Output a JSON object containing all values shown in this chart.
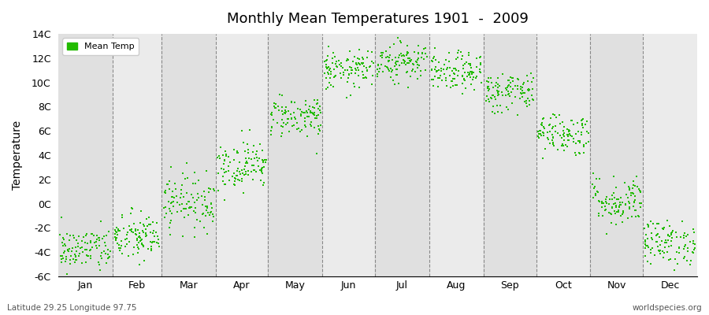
{
  "title": "Monthly Mean Temperatures 1901  -  2009",
  "ylabel": "Temperature",
  "footer_left": "Latitude 29.25 Longitude 97.75",
  "footer_right": "worldspecies.org",
  "legend_label": "Mean Temp",
  "dot_color": "#22bb00",
  "background_color": "#ffffff",
  "band_color_light": "#ebebeb",
  "band_color_dark": "#e0e0e0",
  "ylim": [
    -6,
    14
  ],
  "yticks": [
    -6,
    -4,
    -2,
    0,
    2,
    4,
    6,
    8,
    10,
    12,
    14
  ],
  "ytick_labels": [
    "-6C",
    "-4C",
    "-2C",
    "0C",
    "2C",
    "4C",
    "6C",
    "8C",
    "10C",
    "12C",
    "14C"
  ],
  "months": [
    "Jan",
    "Feb",
    "Mar",
    "Apr",
    "May",
    "Jun",
    "Jul",
    "Aug",
    "Sep",
    "Oct",
    "Nov",
    "Dec"
  ],
  "month_days": [
    31,
    28,
    31,
    30,
    31,
    30,
    31,
    31,
    30,
    31,
    30,
    31
  ],
  "month_means": [
    -3.8,
    -2.8,
    0.2,
    3.2,
    7.2,
    11.0,
    11.8,
    10.8,
    9.2,
    5.8,
    0.2,
    -3.2
  ],
  "month_stds": [
    0.9,
    1.0,
    1.1,
    1.0,
    0.85,
    0.75,
    0.85,
    0.75,
    0.85,
    0.85,
    1.0,
    0.9
  ],
  "n_years": 109,
  "year_start": 1901,
  "seed": 42
}
